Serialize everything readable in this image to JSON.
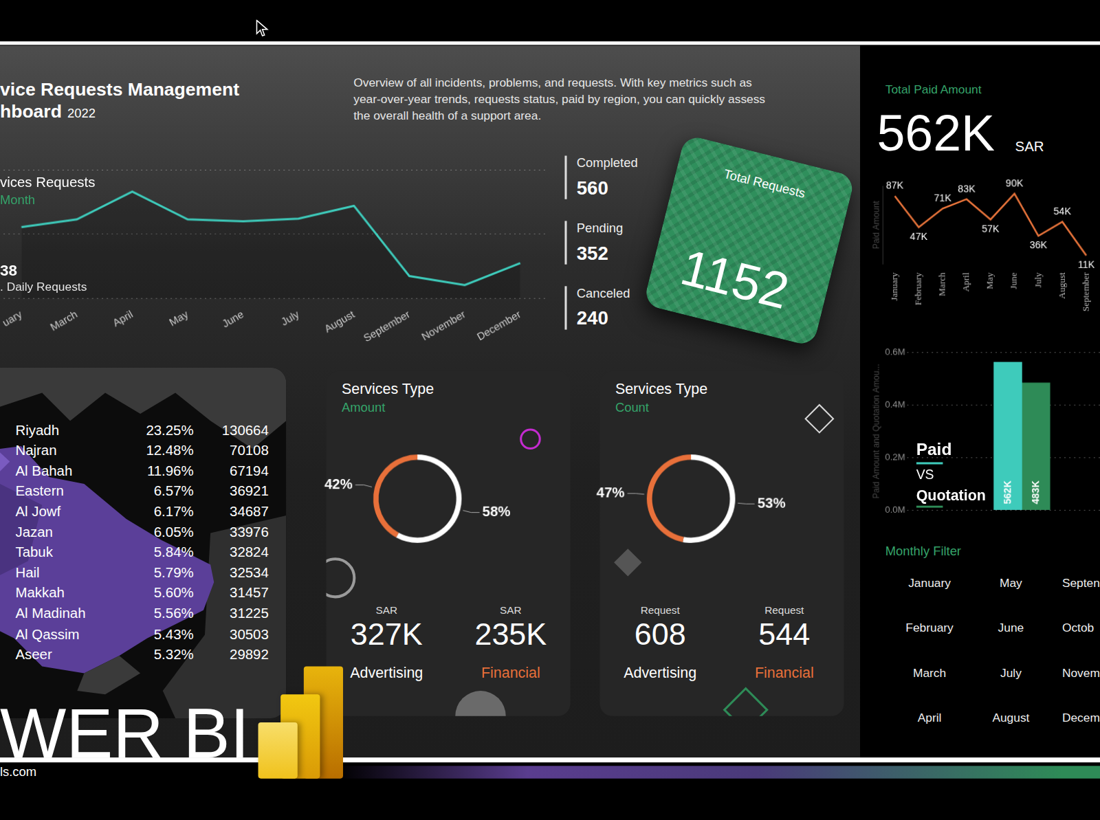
{
  "header": {
    "title_lines": [
      "vice Requests Management",
      "hboard"
    ],
    "year": "2022",
    "description": [
      "Overview of all incidents, problems, and requests. With key metrics such as",
      "year-over-year trends, requests status, paid by region, you can quickly assess",
      "the overall health of a support area."
    ]
  },
  "status": [
    {
      "label": "Completed",
      "value": "560"
    },
    {
      "label": "Pending",
      "value": "352"
    },
    {
      "label": "Canceled",
      "value": "240"
    }
  ],
  "total_requests": {
    "label": "Total Requests",
    "value": "1152"
  },
  "regions": {
    "rows": [
      [
        "Riyadh",
        "23.25%",
        "130664"
      ],
      [
        "Najran",
        "12.48%",
        "70108"
      ],
      [
        "Al Bahah",
        "11.96%",
        "67194"
      ],
      [
        "Eastern",
        "6.57%",
        "36921"
      ],
      [
        "Al Jowf",
        "6.17%",
        "34687"
      ],
      [
        "Jazan",
        "6.05%",
        "33976"
      ],
      [
        "Tabuk",
        "5.84%",
        "32824"
      ],
      [
        "Hail",
        "5.79%",
        "32534"
      ],
      [
        "Makkah",
        "5.60%",
        "31457"
      ],
      [
        "Al Madinah",
        "5.56%",
        "31225"
      ],
      [
        "Al Qassim",
        "5.43%",
        "30503"
      ],
      [
        "Aseer",
        "5.32%",
        "29892"
      ]
    ]
  },
  "total_paid": {
    "label": "Total Paid Amount",
    "value": "562K",
    "unit": "SAR"
  },
  "monthly_filter": {
    "title": "Monthly Filter",
    "columns": [
      [
        "January",
        "February",
        "March",
        "April"
      ],
      [
        "May",
        "June",
        "July",
        "August"
      ],
      [
        "Septen",
        "Octob",
        "Novem",
        "Decem"
      ]
    ]
  },
  "watermark": {
    "text": "WER BI",
    "url": "ls.com"
  },
  "chart_data": [
    {
      "type": "line",
      "title": "vices Requests",
      "subtitle": "Month",
      "annotations": [
        "38",
        ". Daily Requests"
      ],
      "categories": [
        "uary",
        "March",
        "April",
        "May",
        "June",
        "July",
        "August",
        "September",
        "November",
        "December"
      ],
      "values": [
        111,
        123,
        166,
        123,
        120,
        124,
        144,
        35,
        21,
        55
      ],
      "color": "#3ecbbb",
      "ylim": [
        0,
        200
      ],
      "yticks": [
        0,
        100,
        200
      ],
      "grid": true,
      "tick_labels": "x"
    },
    {
      "type": "doughnut",
      "title": "Services Type",
      "subtitle": "Amount",
      "categories": [
        "Advertising",
        "Financial"
      ],
      "values": [
        58,
        42
      ],
      "value_labels": [
        "58%",
        "42%"
      ],
      "colors": [
        "#ffffff",
        "#e8703a"
      ],
      "data_labels": true,
      "kpis": [
        {
          "unit": "SAR",
          "value": "327K"
        },
        {
          "unit": "SAR",
          "value": "235K"
        }
      ]
    },
    {
      "type": "doughnut",
      "title": "Services Type",
      "subtitle": "Count",
      "categories": [
        "Advertising",
        "Financial"
      ],
      "values": [
        53,
        47
      ],
      "value_labels": [
        "53%",
        "47%"
      ],
      "colors": [
        "#ffffff",
        "#e8703a"
      ],
      "data_labels": true,
      "kpis": [
        {
          "unit": "Request",
          "value": "608"
        },
        {
          "unit": "Request",
          "value": "544"
        }
      ]
    },
    {
      "type": "line",
      "y_label": "Paid Amount",
      "categories": [
        "January",
        "February",
        "March",
        "April",
        "May",
        "June",
        "July",
        "August",
        "September"
      ],
      "values": [
        87000,
        47000,
        71000,
        83000,
        57000,
        90000,
        36000,
        54000,
        11000
      ],
      "value_labels": [
        "87K",
        "47K",
        "71K",
        "83K",
        "57K",
        "90K",
        "36K",
        "54K",
        "11K"
      ],
      "color": "#e8743b",
      "ylim": [
        0,
        100000
      ],
      "grid": false,
      "data_labels": true,
      "tick_labels": "x"
    },
    {
      "type": "bar",
      "title_lines": [
        "Paid",
        "VS",
        "Quotation"
      ],
      "y_label": "Paid Amount and Quotation Amou...",
      "categories": [
        null
      ],
      "series": [
        {
          "color": "#3ecbbb",
          "values": [
            562000
          ],
          "value_labels": [
            "562K"
          ]
        },
        {
          "color": "#2e8b57",
          "values": [
            483000
          ],
          "value_labels": [
            "483K"
          ]
        }
      ],
      "ylim": [
        0,
        600000
      ],
      "yticks": [
        {
          "value": 0,
          "label": "0.0M"
        },
        {
          "value": 200000,
          "label": "0.2M"
        },
        {
          "value": 400000,
          "label": "0.4M"
        },
        {
          "value": 600000,
          "label": "0.6M"
        }
      ],
      "grid": true,
      "data_labels": true,
      "tick_labels": "y"
    }
  ]
}
